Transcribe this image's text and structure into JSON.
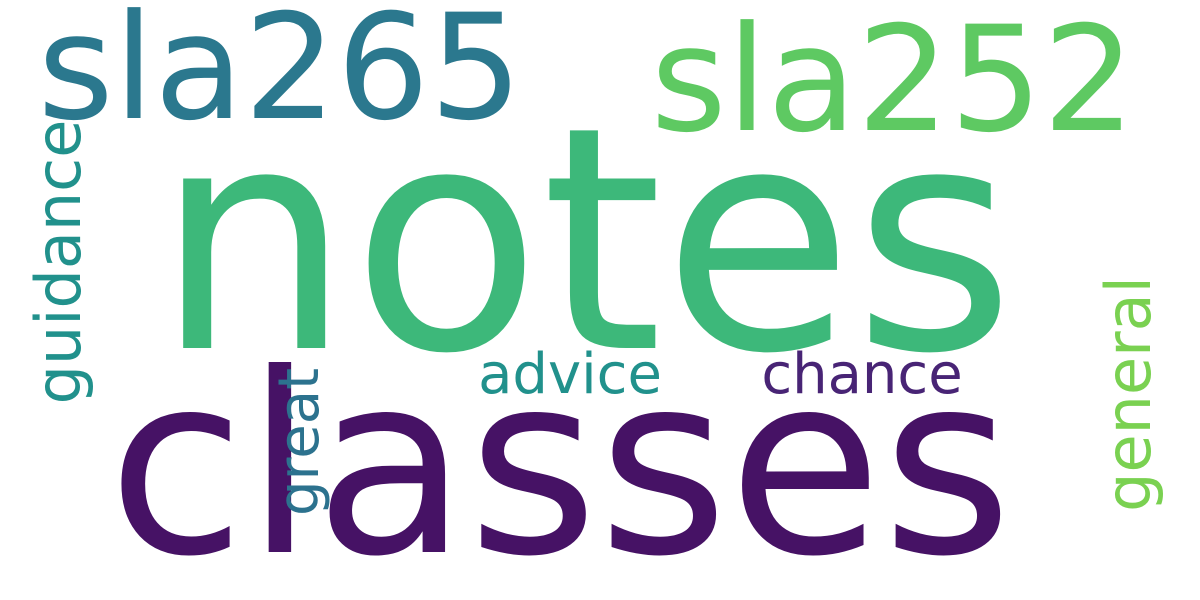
{
  "words": [
    {
      "id": "notes",
      "text": "notes",
      "color": "#3DB87A"
    },
    {
      "id": "classes",
      "text": "classes",
      "color": "#461265"
    },
    {
      "id": "sla265",
      "text": "sla265",
      "color": "#2B788E"
    },
    {
      "id": "sla252",
      "text": "sla252",
      "color": "#5EC962"
    },
    {
      "id": "guidance",
      "text": "guidance",
      "color": "#21918C"
    },
    {
      "id": "advice",
      "text": "advice",
      "color": "#21918C"
    },
    {
      "id": "chance",
      "text": "chance",
      "color": "#482475"
    },
    {
      "id": "great",
      "text": "great",
      "color": "#2C728E"
    },
    {
      "id": "general",
      "text": "general",
      "color": "#7AD151"
    }
  ]
}
